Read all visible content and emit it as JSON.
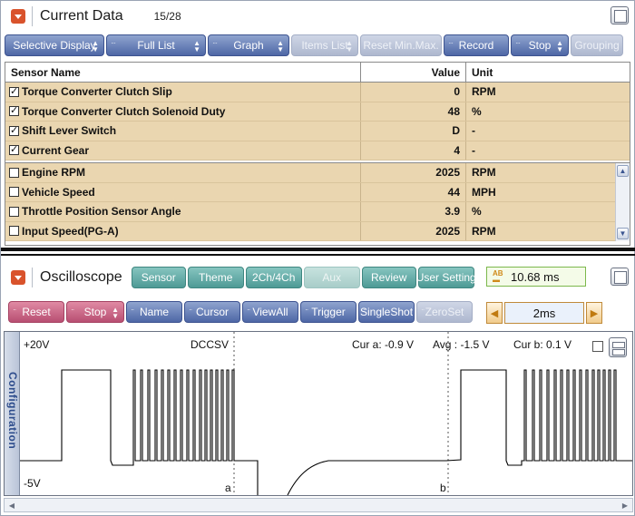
{
  "current_data": {
    "title": "Current Data",
    "count": "15/28",
    "toolbar": [
      {
        "label": "Selective Display",
        "style": "blue",
        "arrows": true,
        "dots": false,
        "width": 110
      },
      {
        "label": "Full List",
        "style": "blue",
        "arrows": true,
        "dots": true,
        "width": 110
      },
      {
        "label": "Graph",
        "style": "blue",
        "arrows": true,
        "dots": true,
        "width": 90
      },
      {
        "label": "Items List",
        "style": "dis",
        "arrows": true,
        "dots": false,
        "width": 74
      },
      {
        "label": "Reset Min.Max.",
        "style": "dis",
        "arrows": false,
        "dots": true,
        "width": 90
      },
      {
        "label": "Record",
        "style": "blue",
        "arrows": false,
        "dots": true,
        "width": 72
      },
      {
        "label": "Stop",
        "style": "blue",
        "arrows": true,
        "dots": true,
        "width": 64
      },
      {
        "label": "Grouping",
        "style": "dis",
        "arrows": false,
        "dots": false,
        "width": 58
      }
    ],
    "columns": {
      "name": "Sensor Name",
      "value": "Value",
      "unit": "Unit"
    },
    "selected_rows": [
      {
        "checked": true,
        "name": "Torque Converter Clutch Slip",
        "value": "0",
        "unit": "RPM"
      },
      {
        "checked": true,
        "name": "Torque Converter Clutch Solenoid Duty",
        "value": "48",
        "unit": "%"
      },
      {
        "checked": true,
        "name": "Shift Lever Switch",
        "value": "D",
        "unit": "-"
      },
      {
        "checked": true,
        "name": "Current Gear",
        "value": "4",
        "unit": "-"
      }
    ],
    "other_rows": [
      {
        "checked": false,
        "name": "Engine RPM",
        "value": "2025",
        "unit": "RPM"
      },
      {
        "checked": false,
        "name": "Vehicle Speed",
        "value": "44",
        "unit": "MPH"
      },
      {
        "checked": false,
        "name": "Throttle Position Sensor Angle",
        "value": "3.9",
        "unit": "%"
      },
      {
        "checked": false,
        "name": "Input Speed(PG-A)",
        "value": "2025",
        "unit": "RPM"
      }
    ]
  },
  "oscilloscope": {
    "title": "Oscilloscope",
    "top_buttons": [
      {
        "label": "Sensor",
        "style": "teal"
      },
      {
        "label": "Theme",
        "style": "teal"
      },
      {
        "label": "2Ch/4Ch",
        "style": "teal"
      },
      {
        "label": "Aux",
        "style": "teal-dis"
      },
      {
        "label": "Review",
        "style": "teal"
      },
      {
        "label": "User Setting",
        "style": "teal"
      }
    ],
    "time_readout": "10.68 ms",
    "bottom_buttons": [
      {
        "label": "Reset",
        "style": "pink",
        "arrows": false
      },
      {
        "label": "Stop",
        "style": "pink",
        "arrows": true
      },
      {
        "label": "Name",
        "style": "blue",
        "arrows": false
      },
      {
        "label": "Cursor",
        "style": "blue",
        "arrows": false
      },
      {
        "label": "ViewAll",
        "style": "blue",
        "arrows": false
      },
      {
        "label": "Trigger",
        "style": "blue",
        "arrows": false
      },
      {
        "label": "SingleShot",
        "style": "blue",
        "arrows": false
      },
      {
        "label": "ZeroSet",
        "style": "dis",
        "arrows": false
      }
    ],
    "time_div": "2ms",
    "config_tab": "Configuration",
    "labels": {
      "vmax": "+20V",
      "vmin": "-5V",
      "coupling": "DCCSV",
      "cur_a": "Cur a: -0.9 V",
      "avg": "Avg : -1.5 V",
      "cur_b": "Cur b: 0.1 V",
      "cursor_a": "a",
      "cursor_b": "b"
    },
    "colors": {
      "trace": "#000000",
      "cursor": "#555555"
    }
  }
}
